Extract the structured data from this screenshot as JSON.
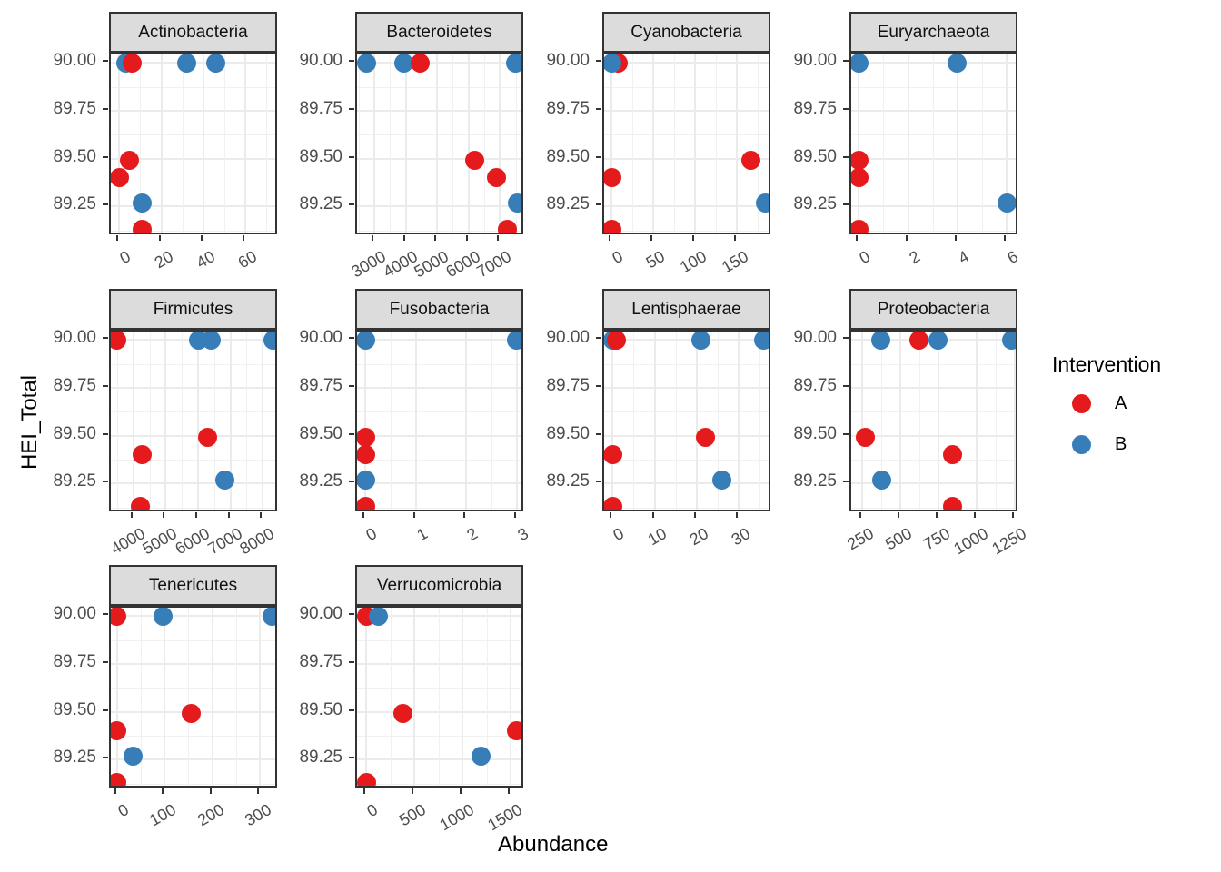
{
  "chart_data": {
    "type": "scatter",
    "title": "",
    "xlabel": "Abundance",
    "ylabel": "HEI_Total",
    "yticks": [
      90.0,
      89.75,
      89.5,
      89.25
    ],
    "ylim": [
      89.095,
      90.045
    ],
    "grid": true,
    "legend": {
      "title": "Intervention",
      "position": "right",
      "entries": [
        {
          "label": "A",
          "color": "#e41a1c"
        },
        {
          "label": "B",
          "color": "#377eb8"
        }
      ]
    },
    "facets": [
      {
        "title": "Actinobacteria",
        "row": 0,
        "col": 0,
        "xlim": [
          -4,
          76
        ],
        "xticks": [
          0,
          20,
          40,
          60
        ],
        "points": [
          {
            "x": 3,
            "y": 90.0,
            "group": "B"
          },
          {
            "x": 6,
            "y": 90.0,
            "group": "A"
          },
          {
            "x": 32,
            "y": 90.0,
            "group": "B"
          },
          {
            "x": 46,
            "y": 90.0,
            "group": "B"
          },
          {
            "x": 5,
            "y": 89.49,
            "group": "A"
          },
          {
            "x": 0,
            "y": 89.4,
            "group": "A"
          },
          {
            "x": 11,
            "y": 89.27,
            "group": "B"
          },
          {
            "x": 11,
            "y": 89.13,
            "group": "A"
          }
        ]
      },
      {
        "title": "Bacteroidetes",
        "row": 0,
        "col": 1,
        "xlim": [
          2450,
          7800
        ],
        "xticks": [
          3000,
          4000,
          5000,
          6000,
          7000
        ],
        "points": [
          {
            "x": 2750,
            "y": 90.0,
            "group": "B"
          },
          {
            "x": 3950,
            "y": 90.0,
            "group": "B"
          },
          {
            "x": 4450,
            "y": 90.0,
            "group": "A"
          },
          {
            "x": 7500,
            "y": 90.0,
            "group": "B"
          },
          {
            "x": 6200,
            "y": 89.49,
            "group": "A"
          },
          {
            "x": 6900,
            "y": 89.4,
            "group": "A"
          },
          {
            "x": 7550,
            "y": 89.27,
            "group": "B"
          },
          {
            "x": 7250,
            "y": 89.13,
            "group": "A"
          }
        ]
      },
      {
        "title": "Cyanobacteria",
        "row": 0,
        "col": 2,
        "xlim": [
          -9,
          192
        ],
        "xticks": [
          0,
          50,
          100,
          150
        ],
        "points": [
          {
            "x": 8,
            "y": 90.0,
            "group": "A"
          },
          {
            "x": 0,
            "y": 90.0,
            "group": "B"
          },
          {
            "x": 166,
            "y": 89.49,
            "group": "A"
          },
          {
            "x": 0,
            "y": 89.4,
            "group": "A"
          },
          {
            "x": 184,
            "y": 89.27,
            "group": "B"
          },
          {
            "x": 0,
            "y": 89.13,
            "group": "A"
          }
        ]
      },
      {
        "title": "Euryarchaeota",
        "row": 0,
        "col": 3,
        "xlim": [
          -0.3,
          6.5
        ],
        "xticks": [
          0,
          2,
          4,
          6
        ],
        "points": [
          {
            "x": 0,
            "y": 90.0,
            "group": "B"
          },
          {
            "x": 4,
            "y": 90.0,
            "group": "B"
          },
          {
            "x": 0,
            "y": 89.49,
            "group": "A"
          },
          {
            "x": 0,
            "y": 89.4,
            "group": "A"
          },
          {
            "x": 6,
            "y": 89.27,
            "group": "B"
          },
          {
            "x": 0,
            "y": 89.13,
            "group": "A"
          }
        ]
      },
      {
        "title": "Firmicutes",
        "row": 1,
        "col": 0,
        "xlim": [
          3300,
          8500
        ],
        "xticks": [
          4000,
          5000,
          6000,
          7000,
          8000
        ],
        "points": [
          {
            "x": 3480,
            "y": 90.0,
            "group": "A"
          },
          {
            "x": 6000,
            "y": 90.0,
            "group": "B"
          },
          {
            "x": 6400,
            "y": 90.0,
            "group": "B"
          },
          {
            "x": 8320,
            "y": 90.0,
            "group": "B"
          },
          {
            "x": 6300,
            "y": 89.49,
            "group": "A"
          },
          {
            "x": 4260,
            "y": 89.4,
            "group": "A"
          },
          {
            "x": 6830,
            "y": 89.27,
            "group": "B"
          },
          {
            "x": 4200,
            "y": 89.13,
            "group": "A"
          }
        ]
      },
      {
        "title": "Fusobacteria",
        "row": 1,
        "col": 1,
        "xlim": [
          -0.17,
          3.17
        ],
        "xticks": [
          0,
          1,
          2,
          3
        ],
        "points": [
          {
            "x": 0,
            "y": 90.0,
            "group": "B"
          },
          {
            "x": 3,
            "y": 90.0,
            "group": "B"
          },
          {
            "x": 0,
            "y": 89.49,
            "group": "A"
          },
          {
            "x": 0,
            "y": 89.4,
            "group": "A"
          },
          {
            "x": 0,
            "y": 89.27,
            "group": "B"
          },
          {
            "x": 0,
            "y": 89.13,
            "group": "A"
          }
        ]
      },
      {
        "title": "Lentisphaerae",
        "row": 1,
        "col": 2,
        "xlim": [
          -2,
          38
        ],
        "xticks": [
          0,
          10,
          20,
          30
        ],
        "points": [
          {
            "x": 0,
            "y": 90.0,
            "group": "B"
          },
          {
            "x": 1,
            "y": 90.0,
            "group": "A"
          },
          {
            "x": 21,
            "y": 90.0,
            "group": "B"
          },
          {
            "x": 36,
            "y": 90.0,
            "group": "B"
          },
          {
            "x": 22,
            "y": 89.49,
            "group": "A"
          },
          {
            "x": 0,
            "y": 89.4,
            "group": "A"
          },
          {
            "x": 26,
            "y": 89.27,
            "group": "B"
          },
          {
            "x": 0,
            "y": 89.13,
            "group": "A"
          }
        ]
      },
      {
        "title": "Proteobacteria",
        "row": 1,
        "col": 3,
        "xlim": [
          180,
          1280
        ],
        "xticks": [
          250,
          500,
          750,
          1000,
          1250
        ],
        "points": [
          {
            "x": 375,
            "y": 90.0,
            "group": "B"
          },
          {
            "x": 620,
            "y": 90.0,
            "group": "A"
          },
          {
            "x": 745,
            "y": 90.0,
            "group": "B"
          },
          {
            "x": 1230,
            "y": 90.0,
            "group": "B"
          },
          {
            "x": 270,
            "y": 89.49,
            "group": "A"
          },
          {
            "x": 845,
            "y": 89.4,
            "group": "A"
          },
          {
            "x": 380,
            "y": 89.27,
            "group": "B"
          },
          {
            "x": 840,
            "y": 89.13,
            "group": "A"
          }
        ]
      },
      {
        "title": "Tenericutes",
        "row": 2,
        "col": 0,
        "xlim": [
          -13,
          340
        ],
        "xticks": [
          0,
          100,
          200,
          300
        ],
        "points": [
          {
            "x": 0,
            "y": 90.0,
            "group": "A"
          },
          {
            "x": 97,
            "y": 90.0,
            "group": "B"
          },
          {
            "x": 325,
            "y": 90.0,
            "group": "B"
          },
          {
            "x": 155,
            "y": 89.49,
            "group": "A"
          },
          {
            "x": 0,
            "y": 89.4,
            "group": "A"
          },
          {
            "x": 34,
            "y": 89.27,
            "group": "B"
          },
          {
            "x": 0,
            "y": 89.13,
            "group": "A"
          }
        ]
      },
      {
        "title": "Verrucomicrobia",
        "row": 2,
        "col": 1,
        "xlim": [
          -95,
          1650
        ],
        "xticks": [
          0,
          500,
          1000,
          1500
        ],
        "points": [
          {
            "x": 0,
            "y": 90.0,
            "group": "A"
          },
          {
            "x": 130,
            "y": 90.0,
            "group": "B"
          },
          {
            "x": 380,
            "y": 89.49,
            "group": "A"
          },
          {
            "x": 1560,
            "y": 89.4,
            "group": "A"
          },
          {
            "x": 1190,
            "y": 89.27,
            "group": "B"
          },
          {
            "x": 0,
            "y": 89.13,
            "group": "A"
          }
        ]
      }
    ]
  }
}
